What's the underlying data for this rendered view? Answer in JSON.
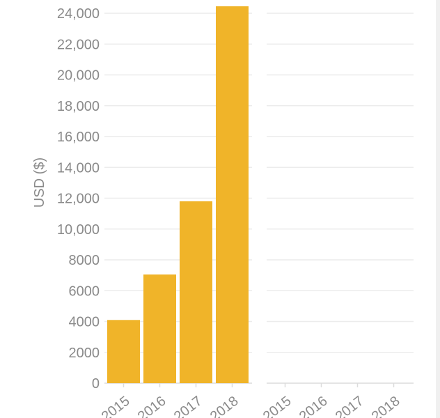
{
  "chart_data": [
    {
      "type": "bar",
      "categories": [
        "2015",
        "2016",
        "2017",
        "2018"
      ],
      "values": [
        4100,
        7050,
        11800,
        24450
      ],
      "ylabel": "USD ($)",
      "ylim": [
        0,
        24000
      ],
      "yticks": [
        0,
        2000,
        4000,
        6000,
        8000,
        "10,000",
        "12,000",
        "14,000",
        "16,000",
        "18,000",
        "20,000",
        "22,000",
        "24,000"
      ],
      "bar_color": "#f0b429",
      "grid": true
    },
    {
      "type": "bar",
      "categories": [
        "2015",
        "2016",
        "2017",
        "2018"
      ],
      "values": [
        0,
        0,
        0,
        0
      ],
      "grid": true
    }
  ]
}
